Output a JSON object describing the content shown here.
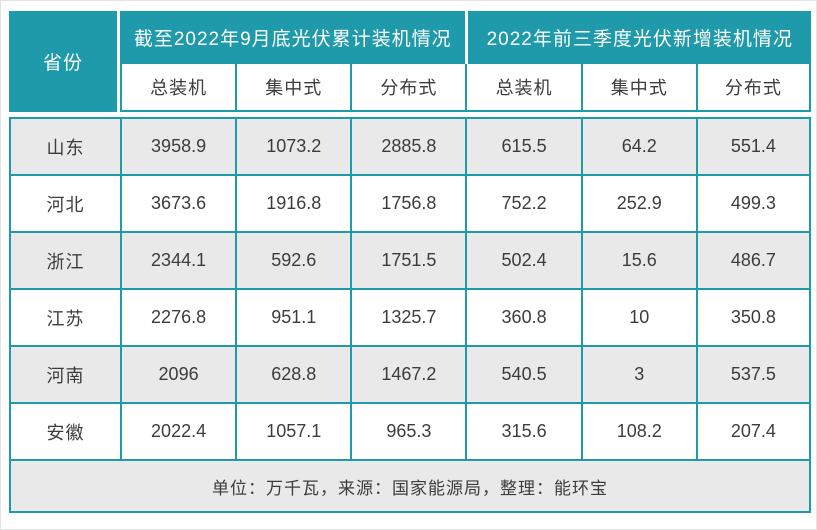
{
  "table": {
    "corner_header": "省份",
    "group_headers": [
      "截至2022年9月底光伏累计装机情况",
      "2022年前三季度光伏新增装机情况"
    ],
    "sub_headers": [
      "总装机",
      "集中式",
      "分布式",
      "总装机",
      "集中式",
      "分布式"
    ],
    "rows": [
      {
        "province": "山东",
        "values": [
          "3958.9",
          "1073.2",
          "2885.8",
          "615.5",
          "64.2",
          "551.4"
        ]
      },
      {
        "province": "河北",
        "values": [
          "3673.6",
          "1916.8",
          "1756.8",
          "752.2",
          "252.9",
          "499.3"
        ]
      },
      {
        "province": "浙江",
        "values": [
          "2344.1",
          "592.6",
          "1751.5",
          "502.4",
          "15.6",
          "486.7"
        ]
      },
      {
        "province": "江苏",
        "values": [
          "2276.8",
          "951.1",
          "1325.7",
          "360.8",
          "10",
          "350.8"
        ]
      },
      {
        "province": "河南",
        "values": [
          "2096",
          "628.8",
          "1467.2",
          "540.5",
          "3",
          "537.5"
        ]
      },
      {
        "province": "安徽",
        "values": [
          "2022.4",
          "1057.1",
          "965.3",
          "315.6",
          "108.2",
          "207.4"
        ]
      }
    ],
    "footer_note": "单位：万千瓦，来源：国家能源局，整理：能环宝"
  },
  "colors": {
    "teal": "#1e9aab",
    "row_alt_gray": "#e9e9e9",
    "text_dark": "#3c3c3c",
    "header_text": "#ffffff"
  },
  "chart_data": {
    "type": "table",
    "title": "",
    "unit_note": "单位：万千瓦",
    "source_note": "来源：国家能源局",
    "compiled_note": "整理：能环宝",
    "column_groups": [
      {
        "label": "截至2022年9月底光伏累计装机情况",
        "columns": [
          "总装机",
          "集中式",
          "分布式"
        ]
      },
      {
        "label": "2022年前三季度光伏新增装机情况",
        "columns": [
          "总装机",
          "集中式",
          "分布式"
        ]
      }
    ],
    "row_header": "省份",
    "rows": [
      {
        "省份": "山东",
        "累计_总装机": 3958.9,
        "累计_集中式": 1073.2,
        "累计_分布式": 2885.8,
        "新增_总装机": 615.5,
        "新增_集中式": 64.2,
        "新增_分布式": 551.4
      },
      {
        "省份": "河北",
        "累计_总装机": 3673.6,
        "累计_集中式": 1916.8,
        "累计_分布式": 1756.8,
        "新增_总装机": 752.2,
        "新增_集中式": 252.9,
        "新增_分布式": 499.3
      },
      {
        "省份": "浙江",
        "累计_总装机": 2344.1,
        "累计_集中式": 592.6,
        "累计_分布式": 1751.5,
        "新增_总装机": 502.4,
        "新增_集中式": 15.6,
        "新增_分布式": 486.7
      },
      {
        "省份": "江苏",
        "累计_总装机": 2276.8,
        "累计_集中式": 951.1,
        "累计_分布式": 1325.7,
        "新增_总装机": 360.8,
        "新增_集中式": 10,
        "新增_分布式": 350.8
      },
      {
        "省份": "河南",
        "累计_总装机": 2096,
        "累计_集中式": 628.8,
        "累计_分布式": 1467.2,
        "新增_总装机": 540.5,
        "新增_集中式": 3,
        "新增_分布式": 537.5
      },
      {
        "省份": "安徽",
        "累计_总装机": 2022.4,
        "累计_集中式": 1057.1,
        "累计_分布式": 965.3,
        "新增_总装机": 315.6,
        "新增_集中式": 108.2,
        "新增_分布式": 207.4
      }
    ]
  }
}
